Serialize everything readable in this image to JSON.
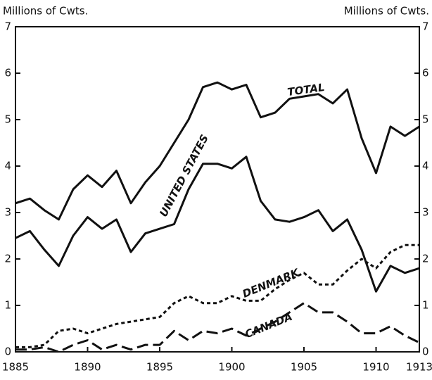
{
  "chart_data": {
    "type": "line",
    "y_label": "Millions of Cwts.",
    "y2_label": "Millions of Cwts.",
    "x": [
      1885,
      1886,
      1887,
      1888,
      1889,
      1890,
      1891,
      1892,
      1893,
      1894,
      1895,
      1896,
      1897,
      1898,
      1899,
      1900,
      1901,
      1902,
      1903,
      1904,
      1905,
      1906,
      1907,
      1908,
      1909,
      1910,
      1911,
      1912,
      1913
    ],
    "series": [
      {
        "name": "TOTAL",
        "color": "#111111",
        "style": "solid",
        "values": [
          3.2,
          3.3,
          3.05,
          2.85,
          3.5,
          3.8,
          3.55,
          3.9,
          3.2,
          3.65,
          4.0,
          4.5,
          5.0,
          5.7,
          5.8,
          5.65,
          5.75,
          5.05,
          5.15,
          5.45,
          5.5,
          5.55,
          5.35,
          5.65,
          4.6,
          3.85,
          4.85,
          4.65,
          4.85
        ]
      },
      {
        "name": "UNITED STATES",
        "color": "#111111",
        "style": "solid",
        "values": [
          2.45,
          2.6,
          2.2,
          1.85,
          2.5,
          2.9,
          2.65,
          2.85,
          2.15,
          2.55,
          2.65,
          2.75,
          3.5,
          4.05,
          4.05,
          3.95,
          4.2,
          3.25,
          2.85,
          2.8,
          2.9,
          3.05,
          2.6,
          2.85,
          2.2,
          1.3,
          1.85,
          1.7,
          1.8
        ]
      },
      {
        "name": "DENMARK",
        "color": "#111111",
        "style": "dotted",
        "values": [
          0.1,
          0.1,
          0.15,
          0.45,
          0.5,
          0.4,
          0.5,
          0.6,
          0.65,
          0.7,
          0.75,
          1.05,
          1.2,
          1.05,
          1.05,
          1.2,
          1.1,
          1.1,
          1.35,
          1.55,
          1.7,
          1.45,
          1.45,
          1.75,
          2.0,
          1.8,
          2.15,
          2.3,
          2.3
        ]
      },
      {
        "name": "CANADA",
        "color": "#111111",
        "style": "dashed",
        "values": [
          0.05,
          0.05,
          0.1,
          0.0,
          0.15,
          0.25,
          0.05,
          0.15,
          0.05,
          0.15,
          0.15,
          0.45,
          0.25,
          0.45,
          0.4,
          0.5,
          0.35,
          0.5,
          0.65,
          0.85,
          1.05,
          0.85,
          0.85,
          0.65,
          0.4,
          0.4,
          0.55,
          0.35,
          0.2
        ]
      }
    ],
    "xlim": [
      1885,
      1913
    ],
    "xticks": [
      1885,
      1890,
      1895,
      1900,
      1905,
      1910,
      1913
    ],
    "ylim": [
      0,
      7
    ],
    "yticks": [
      0,
      1,
      2,
      3,
      4,
      5,
      6,
      7
    ],
    "y2lim": [
      0,
      7
    ],
    "y2ticks": [
      0,
      1,
      2,
      3,
      4,
      5,
      6,
      7
    ]
  }
}
